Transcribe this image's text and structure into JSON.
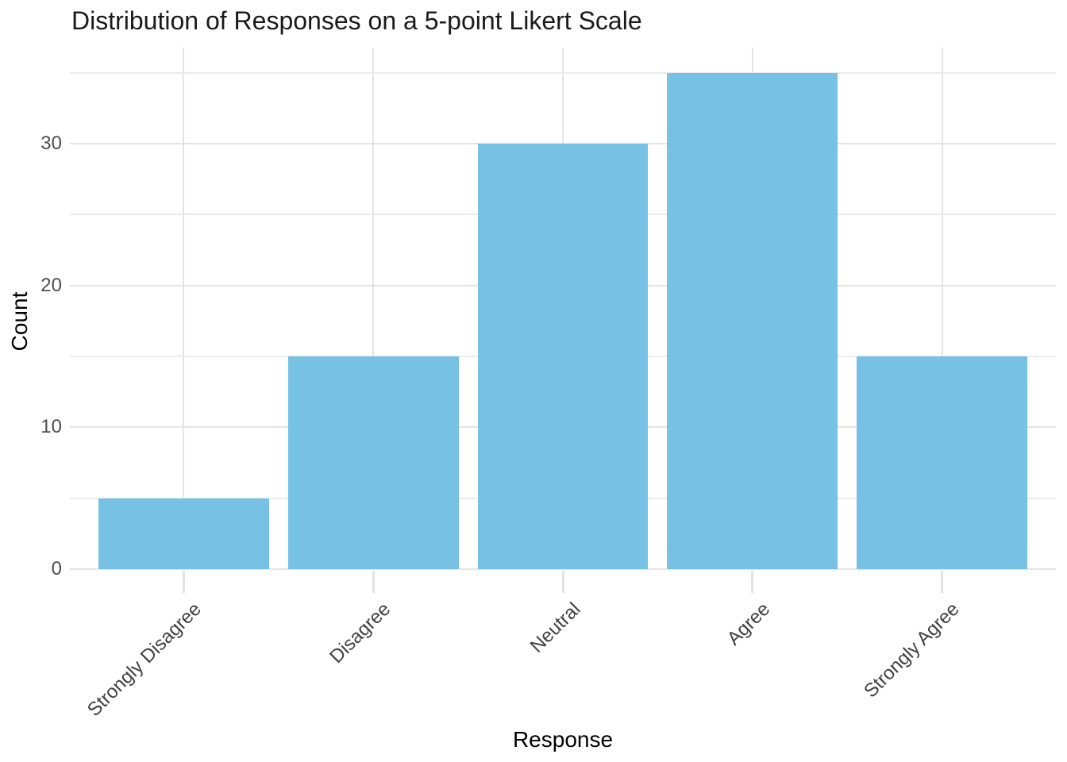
{
  "chart_data": {
    "type": "bar",
    "title": "Distribution of Responses on a 5-point Likert Scale",
    "xlabel": "Response",
    "ylabel": "Count",
    "categories": [
      "Strongly Disagree",
      "Disagree",
      "Neutral",
      "Agree",
      "Strongly Agree"
    ],
    "values": [
      5,
      15,
      30,
      35,
      15
    ],
    "yticks_major": [
      0,
      10,
      20,
      30
    ],
    "yticks_minor": [
      5,
      15,
      25,
      35
    ],
    "ylim": [
      0,
      36.75
    ],
    "legend": "none",
    "grid": "horizontal major and minor lines; vertical lines at category centers",
    "colors": {
      "bar_fill": "#76C1E4",
      "grid_major": "#E4E4E4",
      "grid_minor": "#EBEBEB",
      "tick_mark": "#E2E2E2",
      "axis_text": "#4D4D4D",
      "axis_title_text": "#000000",
      "title_text": "#1A1A1A",
      "background": "#FFFFFF"
    }
  }
}
